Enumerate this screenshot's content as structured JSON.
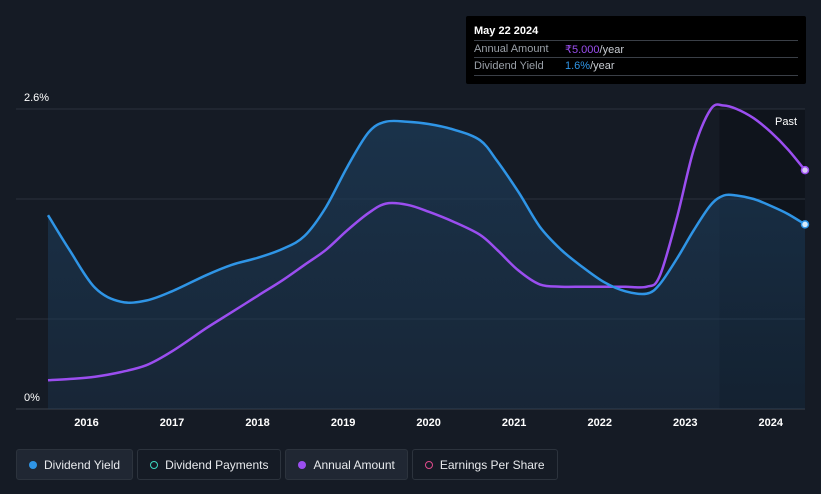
{
  "chart_data": {
    "type": "line",
    "title": "",
    "xlabel": "",
    "ylabel": "",
    "x_range": [
      2015.55,
      2024.4
    ],
    "ylim": [
      0,
      2.6
    ],
    "y_tick_labels": [
      "2.6%",
      "0%"
    ],
    "x_ticks": [
      2016,
      2017,
      2018,
      2019,
      2020,
      2021,
      2022,
      2023,
      2024
    ],
    "past_label": "Past",
    "past_start": 2023.4,
    "colors": {
      "dividend_yield": "#2f95e6",
      "annual_amount": "#9b4ef0",
      "area_fill": "#1c3a57",
      "earnings_per_share": "#e04a8c",
      "dividend_payments": "#3dd9c0"
    },
    "series": [
      {
        "name": "Dividend Yield",
        "x": [
          2015.55,
          2015.8,
          2016.1,
          2016.4,
          2016.7,
          2017.0,
          2017.4,
          2017.7,
          2018.0,
          2018.3,
          2018.55,
          2018.8,
          2019.05,
          2019.3,
          2019.5,
          2019.75,
          2020.0,
          2020.3,
          2020.6,
          2020.8,
          2021.05,
          2021.3,
          2021.55,
          2021.8,
          2022.05,
          2022.3,
          2022.55,
          2022.7,
          2022.9,
          2023.1,
          2023.3,
          2023.45,
          2023.6,
          2023.8,
          2024.0,
          2024.2,
          2024.4
        ],
        "values": [
          1.68,
          1.38,
          1.05,
          0.93,
          0.94,
          1.02,
          1.16,
          1.25,
          1.31,
          1.39,
          1.5,
          1.75,
          2.1,
          2.4,
          2.49,
          2.49,
          2.47,
          2.42,
          2.33,
          2.15,
          1.88,
          1.58,
          1.38,
          1.23,
          1.1,
          1.02,
          1.0,
          1.08,
          1.3,
          1.55,
          1.77,
          1.85,
          1.85,
          1.82,
          1.76,
          1.69,
          1.6
        ]
      },
      {
        "name": "Annual Amount",
        "x": [
          2015.55,
          2015.8,
          2016.1,
          2016.4,
          2016.7,
          2017.0,
          2017.4,
          2017.7,
          2018.0,
          2018.3,
          2018.55,
          2018.8,
          2019.05,
          2019.3,
          2019.5,
          2019.75,
          2020.0,
          2020.3,
          2020.6,
          2020.8,
          2021.05,
          2021.3,
          2021.55,
          2021.8,
          2022.05,
          2022.3,
          2022.55,
          2022.7,
          2022.9,
          2023.1,
          2023.3,
          2023.45,
          2023.6,
          2023.8,
          2024.0,
          2024.2,
          2024.4
        ],
        "values": [
          0.25,
          0.26,
          0.28,
          0.32,
          0.38,
          0.5,
          0.7,
          0.84,
          0.98,
          1.12,
          1.25,
          1.38,
          1.55,
          1.7,
          1.78,
          1.77,
          1.71,
          1.62,
          1.51,
          1.38,
          1.2,
          1.08,
          1.06,
          1.06,
          1.06,
          1.06,
          1.06,
          1.15,
          1.65,
          2.25,
          2.6,
          2.63,
          2.6,
          2.52,
          2.4,
          2.25,
          2.07
        ]
      }
    ]
  },
  "tooltip": {
    "date": "May 22 2024",
    "annual_amount_label": "Annual Amount",
    "annual_amount_value": "₹5.000",
    "annual_amount_unit": "/year",
    "dividend_yield_label": "Dividend Yield",
    "dividend_yield_value": "1.6%",
    "dividend_yield_unit": "/year"
  },
  "legend": [
    {
      "label": "Dividend Yield",
      "color": "#2f95e6",
      "style": "filled"
    },
    {
      "label": "Dividend Payments",
      "color": "#3dd9c0",
      "style": "outline"
    },
    {
      "label": "Annual Amount",
      "color": "#9b4ef0",
      "style": "filled"
    },
    {
      "label": "Earnings Per Share",
      "color": "#e04a8c",
      "style": "outline"
    }
  ]
}
